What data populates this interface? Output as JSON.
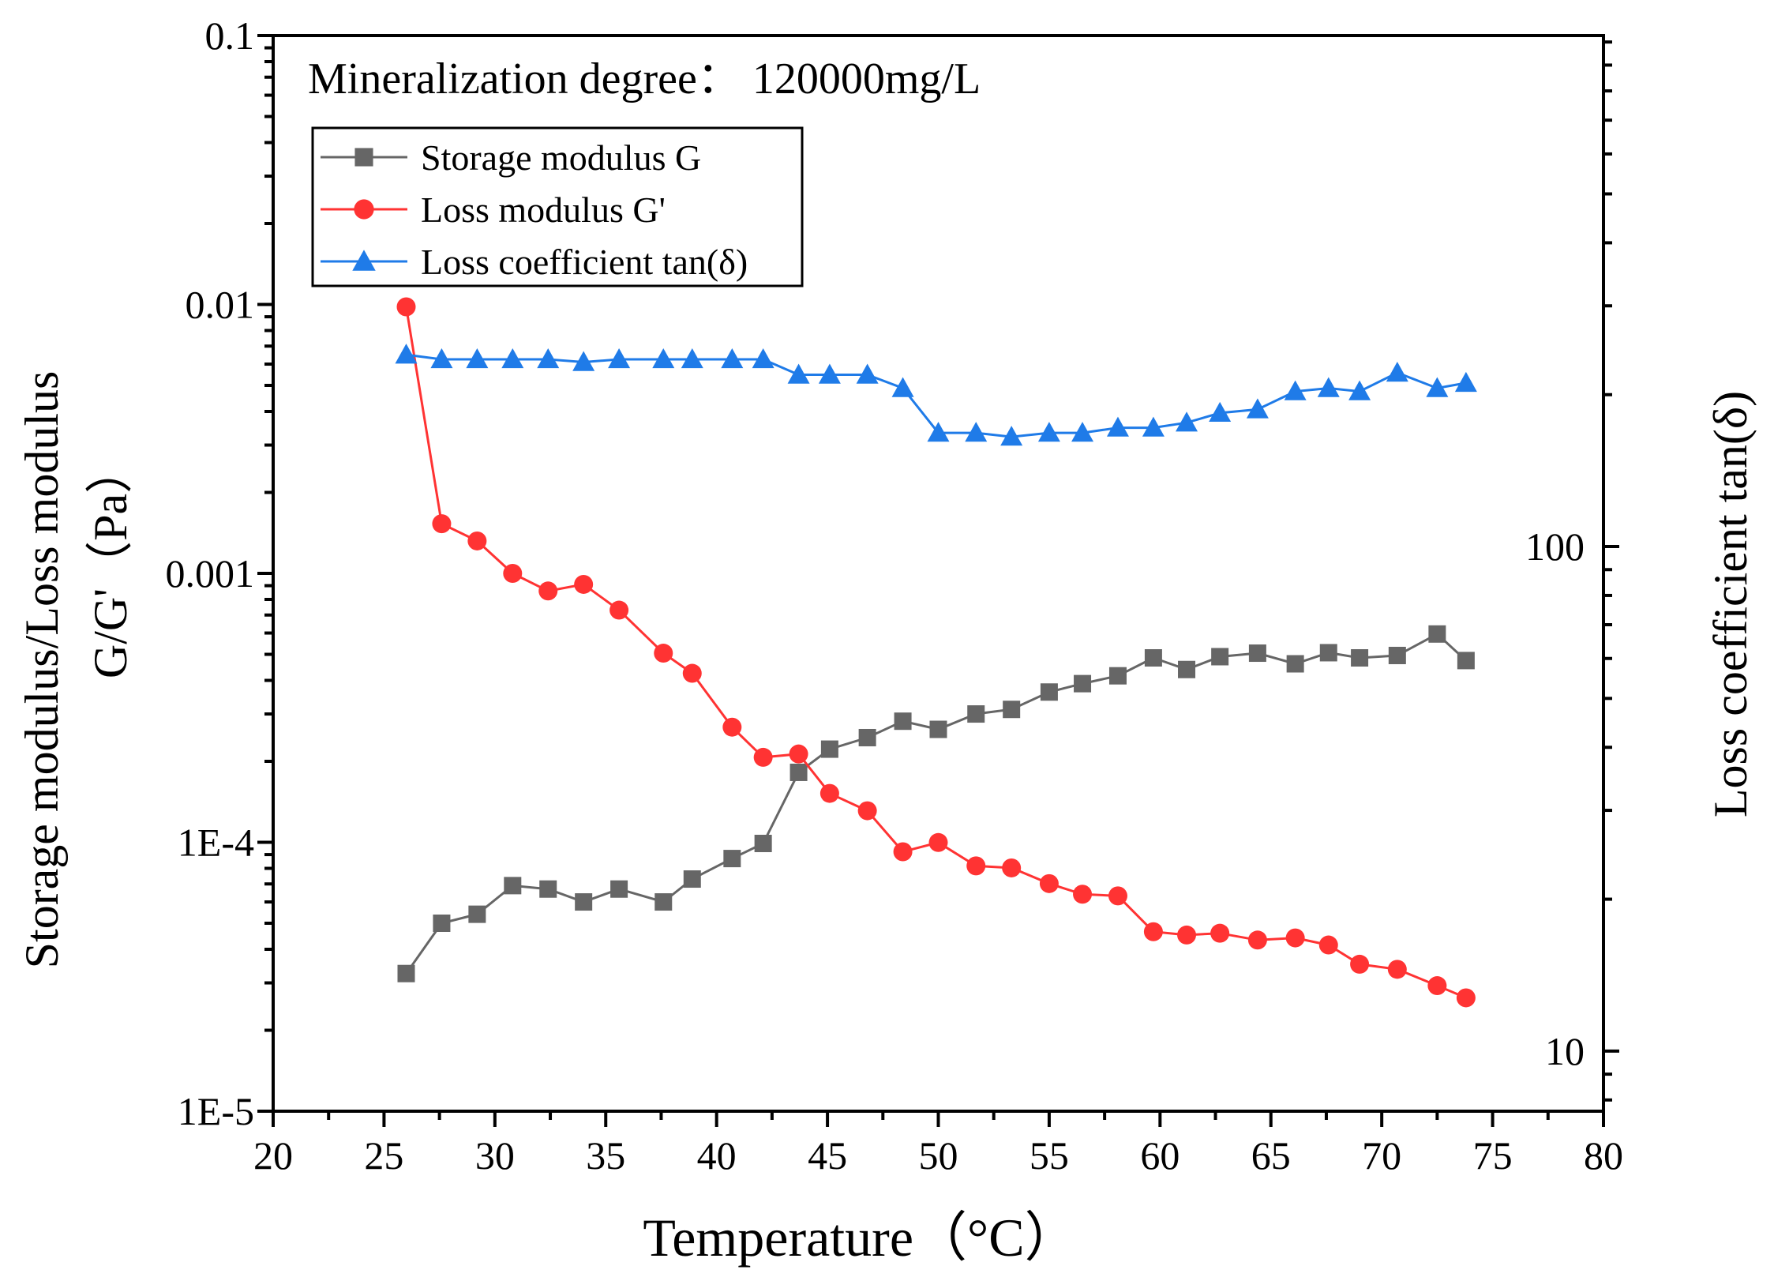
{
  "chart_data": {
    "type": "line",
    "title": "Mineralization degree： 120000mg/L",
    "xlabel": "Temperature（°C）",
    "ylabel_left_line1": "Storage modulus/Loss modulus",
    "ylabel_left_line2": "G/G'（Pa）",
    "ylabel_right": "Loss coefficient tan(δ)",
    "xlim": [
      20,
      80
    ],
    "ylim_left": [
      1e-05,
      0.1
    ],
    "ylim_right": [
      7.6,
      1030
    ],
    "x_ticks": [
      20,
      25,
      30,
      35,
      40,
      45,
      50,
      55,
      60,
      65,
      70,
      75,
      80
    ],
    "x_tick_labels": [
      "20",
      "25",
      "30",
      "35",
      "40",
      "45",
      "50",
      "55",
      "60",
      "65",
      "70",
      "75",
      "80"
    ],
    "y_left_ticks": [
      1e-05,
      0.0001,
      0.001,
      0.01,
      0.1
    ],
    "y_left_tick_labels": [
      "1E-5",
      "1E-4",
      "0.001",
      "0.01",
      "0.1"
    ],
    "y_right_ticks": [
      10,
      100
    ],
    "y_right_tick_labels": [
      "10",
      "100"
    ],
    "legend_position": "top-left",
    "series": [
      {
        "name": "Storage modulus G",
        "axis": "left",
        "marker": "square",
        "color": "#666666",
        "x": [
          26.0,
          27.6,
          29.2,
          30.8,
          32.4,
          34.0,
          35.6,
          37.6,
          38.9,
          40.7,
          42.1,
          43.7,
          45.1,
          46.8,
          48.4,
          50.0,
          51.7,
          53.3,
          55.0,
          56.5,
          58.1,
          59.7,
          61.2,
          62.7,
          64.4,
          66.1,
          67.6,
          69.0,
          70.7,
          72.5,
          73.8
        ],
        "values": [
          3.25e-05,
          5e-05,
          5.4e-05,
          6.9e-05,
          6.7e-05,
          6e-05,
          6.7e-05,
          6e-05,
          7.3e-05,
          8.7e-05,
          9.9e-05,
          0.000182,
          0.000222,
          0.000245,
          0.000282,
          0.000263,
          0.0003,
          0.000312,
          0.000362,
          0.000389,
          0.000416,
          0.000485,
          0.000439,
          0.00049,
          0.000505,
          0.000461,
          0.000507,
          0.000485,
          0.000495,
          0.000595,
          0.000474
        ]
      },
      {
        "name": "Loss modulus G'",
        "axis": "left",
        "marker": "circle",
        "color": "#ff3333",
        "x": [
          26.0,
          27.6,
          29.2,
          30.8,
          32.4,
          34.0,
          35.6,
          37.6,
          38.9,
          40.7,
          42.1,
          43.7,
          45.1,
          46.8,
          48.4,
          50.0,
          51.7,
          53.3,
          55.0,
          56.5,
          58.1,
          59.7,
          61.2,
          62.7,
          64.4,
          66.1,
          67.6,
          69.0,
          70.7,
          72.5,
          73.8
        ],
        "values": [
          0.0098,
          0.00153,
          0.00132,
          0.001,
          0.00086,
          0.00091,
          0.00073,
          0.000505,
          0.000425,
          0.000268,
          0.000207,
          0.000213,
          0.000152,
          0.000131,
          9.22e-05,
          9.98e-05,
          8.17e-05,
          8.03e-05,
          7.02e-05,
          6.41e-05,
          6.32e-05,
          4.65e-05,
          4.52e-05,
          4.59e-05,
          4.33e-05,
          4.41e-05,
          4.15e-05,
          3.52e-05,
          3.37e-05,
          2.93e-05,
          2.64e-05
        ]
      },
      {
        "name": "Loss coefficient tan(δ)",
        "axis": "right",
        "marker": "triangle",
        "color": "#1f7be8",
        "x": [
          26.0,
          27.6,
          29.2,
          30.8,
          32.4,
          34.0,
          35.6,
          37.6,
          38.9,
          40.7,
          42.1,
          43.7,
          45.1,
          46.8,
          48.4,
          50.0,
          51.7,
          53.3,
          55.0,
          56.5,
          58.1,
          59.7,
          61.2,
          62.7,
          64.4,
          66.1,
          67.6,
          69.0,
          70.7,
          72.5,
          73.8
        ],
        "values": [
          240,
          235,
          235,
          235,
          235,
          232,
          235,
          235,
          235,
          235,
          235,
          219,
          219,
          219,
          206,
          168,
          168,
          165,
          168,
          168,
          172,
          172,
          176,
          184,
          187,
          203,
          206,
          203,
          221,
          206,
          211
        ]
      }
    ]
  }
}
